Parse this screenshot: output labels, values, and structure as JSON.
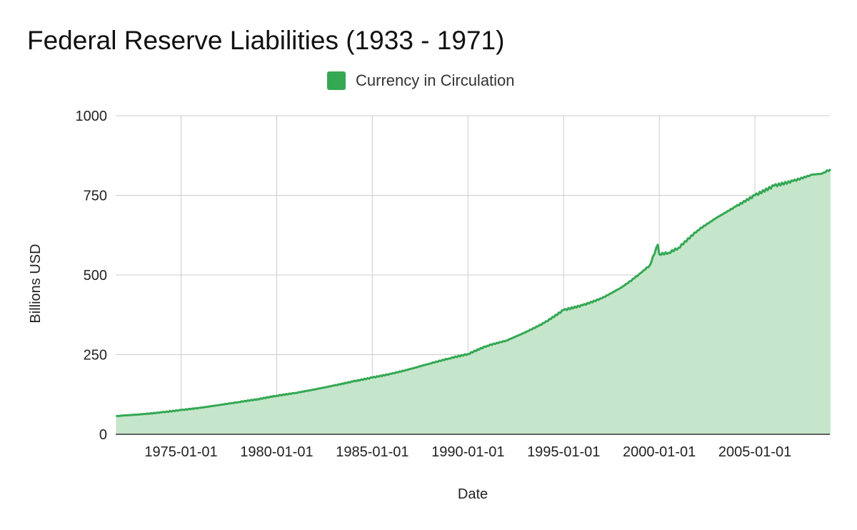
{
  "colors": {
    "series_line": "#34A853",
    "series_fill": "#C5E6CB",
    "gridline": "#CCCCCC",
    "baseline": "#333333"
  },
  "chart_data": {
    "type": "area",
    "title": "Federal Reserve Liabilities (1933 - 1971)",
    "xlabel": "Date",
    "ylabel": "Billions USD",
    "legend_position": "top-center",
    "grid": true,
    "ylim": [
      0,
      1000
    ],
    "xlim": [
      "1971-08-01",
      "2008-12-01"
    ],
    "yticks": [
      0,
      250,
      500,
      750,
      1000
    ],
    "xticks": [
      "1975-01-01",
      "1980-01-01",
      "1985-01-01",
      "1990-01-01",
      "1995-01-01",
      "2000-01-01",
      "2005-01-01"
    ],
    "series": [
      {
        "name": "Currency in Circulation",
        "x": [
          1971.6,
          1972.0,
          1973.0,
          1974.0,
          1975.0,
          1976.0,
          1977.0,
          1978.0,
          1979.0,
          1980.0,
          1981.0,
          1982.0,
          1983.0,
          1984.0,
          1985.0,
          1986.0,
          1987.0,
          1988.0,
          1989.0,
          1990.0,
          1991.0,
          1992.0,
          1993.0,
          1994.0,
          1995.0,
          1996.0,
          1997.0,
          1998.0,
          1998.7,
          1999.5,
          1999.92,
          2000.0,
          2000.5,
          2001.0,
          2002.0,
          2003.0,
          2004.0,
          2005.0,
          2006.0,
          2007.0,
          2008.0,
          2008.5,
          2008.95
        ],
        "values": [
          57,
          59,
          63,
          69,
          76,
          83,
          92,
          101,
          110,
          121,
          130,
          141,
          153,
          166,
          178,
          190,
          205,
          222,
          238,
          252,
          278,
          294,
          320,
          350,
          390,
          405,
          427,
          460,
          490,
          530,
          595,
          565,
          570,
          585,
          640,
          680,
          715,
          750,
          780,
          795,
          815,
          818,
          832
        ]
      }
    ]
  }
}
